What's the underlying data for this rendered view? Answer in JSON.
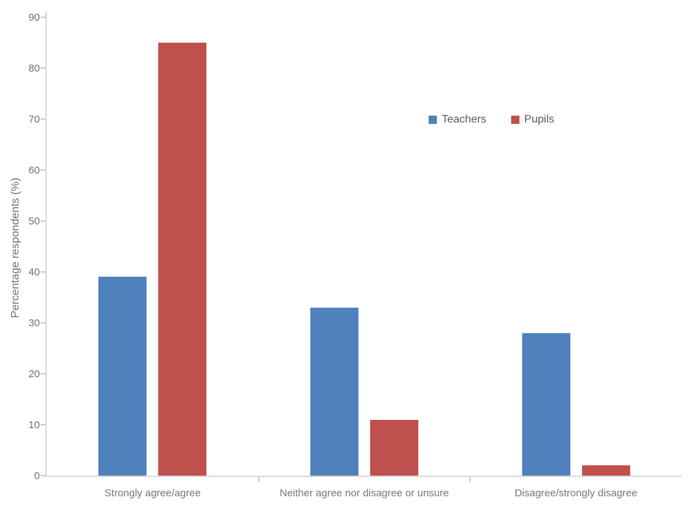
{
  "chart_data": {
    "type": "bar",
    "title": "",
    "xlabel": "",
    "ylabel": "Percentage respondents (%)",
    "categories": [
      "Strongly agree/agree",
      "Neither agree nor disagree or unsure",
      "Disagree/strongly disagree"
    ],
    "series": [
      {
        "name": "Teachers",
        "color": "#4F81BD",
        "values": [
          39,
          33,
          28
        ]
      },
      {
        "name": "Pupils",
        "color": "#C0504D",
        "values": [
          85,
          11,
          2
        ]
      }
    ],
    "ylim": [
      0,
      90
    ],
    "yticks": [
      0,
      10,
      20,
      30,
      40,
      50,
      60,
      70,
      80,
      90
    ],
    "grid": false,
    "legend_position": "inside-top-right",
    "axis_color": "#DADADA",
    "tick_color": "#C9C9C9",
    "axis_text_color": "#6F6F6F",
    "legend_text_color": "#595959"
  }
}
